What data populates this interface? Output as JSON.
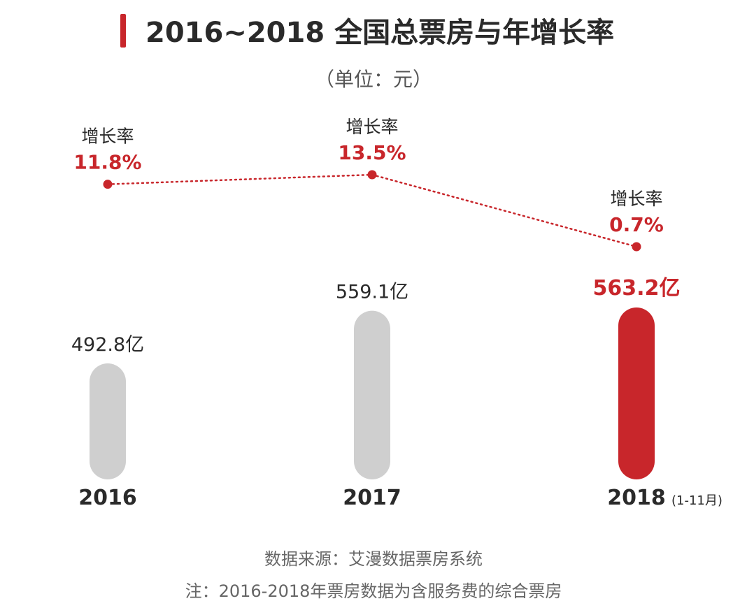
{
  "title": "2016~2018 全国总票房与年增长率",
  "subtitle": "（单位：元）",
  "source": "数据来源：艾漫数据票房系统",
  "note": "注：2016-2018年票房数据为含服务费的综合票房",
  "colors": {
    "accent": "#c8262b",
    "bar_gray": "#cfcfcf",
    "text_dark": "#2a2a2a"
  },
  "chart_data": {
    "type": "bar",
    "categories": [
      "2016",
      "2017",
      "2018"
    ],
    "category_notes": [
      "",
      "",
      "(1-11月)"
    ],
    "values": [
      492.8,
      559.1,
      563.2
    ],
    "value_labels": [
      "492.8亿",
      "559.1亿",
      "563.2亿"
    ],
    "highlight_index": 2,
    "growth": {
      "type": "line",
      "label": "增长率",
      "values": [
        11.8,
        13.5,
        0.7
      ],
      "value_labels": [
        "11.8%",
        "13.5%",
        "0.7%"
      ]
    }
  }
}
